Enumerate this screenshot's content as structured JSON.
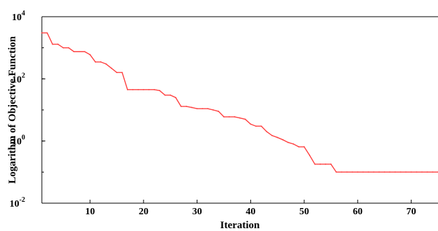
{
  "chart_data": {
    "type": "line",
    "title": "",
    "xlabel": "Iteration",
    "ylabel": "Logarithm of Objective Function",
    "yscale": "log",
    "xlim": [
      1,
      75
    ],
    "ylim": [
      0.01,
      10000
    ],
    "grid": false,
    "legend": "none",
    "x_ticks": [
      10,
      20,
      30,
      40,
      50,
      60,
      70
    ],
    "y_ticks": [
      {
        "base": "10",
        "exp": "4",
        "value": 10000
      },
      {
        "base": "10",
        "exp": "2",
        "value": 100
      },
      {
        "base": "10",
        "exp": "0",
        "value": 1
      },
      {
        "base": "10",
        "exp": "-2",
        "value": 0.01
      }
    ],
    "series": [
      {
        "color": "#ff4040",
        "x": [
          1,
          2,
          3,
          4,
          5,
          6,
          7,
          8,
          9,
          10,
          11,
          12,
          13,
          14,
          15,
          16,
          17,
          18,
          19,
          20,
          21,
          22,
          23,
          24,
          25,
          26,
          27,
          28,
          29,
          30,
          31,
          32,
          33,
          34,
          35,
          36,
          37,
          38,
          39,
          40,
          41,
          42,
          43,
          44,
          45,
          46,
          47,
          48,
          49,
          50,
          51,
          52,
          53,
          54,
          55,
          56,
          57,
          58,
          59,
          60,
          61,
          62,
          63,
          64,
          65,
          66,
          67,
          68,
          69,
          70,
          71,
          72,
          73,
          74,
          75
        ],
        "y": [
          3000,
          3000,
          1300,
          1300,
          1000,
          1000,
          750,
          750,
          750,
          600,
          350,
          350,
          300,
          220,
          160,
          160,
          45,
          45,
          45,
          45,
          45,
          45,
          42,
          30,
          30,
          25,
          13,
          13,
          12,
          11,
          11,
          11,
          10,
          9,
          6,
          6,
          6,
          5.5,
          5,
          3.5,
          3.0,
          3.0,
          2.0,
          1.5,
          1.3,
          1.1,
          0.9,
          0.8,
          0.65,
          0.65,
          0.35,
          0.18,
          0.18,
          0.18,
          0.18,
          0.1,
          0.1,
          0.1,
          0.1,
          0.1,
          0.1,
          0.1,
          0.1,
          0.1,
          0.1,
          0.1,
          0.1,
          0.1,
          0.1,
          0.1,
          0.1,
          0.1,
          0.1,
          0.1,
          0.1
        ]
      }
    ]
  }
}
